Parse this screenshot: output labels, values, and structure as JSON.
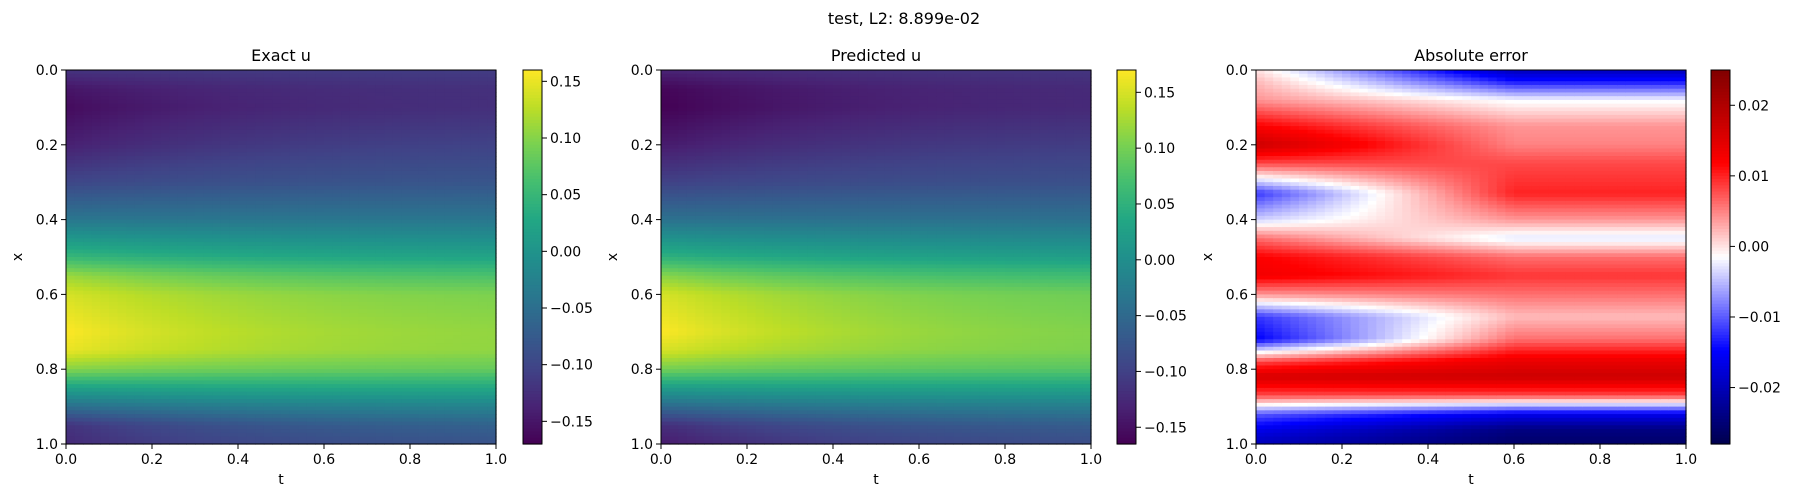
{
  "figure": {
    "suptitle": "test, L2: 8.899e-02"
  },
  "chart_data": [
    {
      "type": "heatmap",
      "title": "Exact u",
      "xlabel": "t",
      "ylabel": "x",
      "xlim": [
        0.0,
        1.0
      ],
      "ylim": [
        1.0,
        0.0
      ],
      "x_ticks": [
        "0.0",
        "0.2",
        "0.4",
        "0.6",
        "0.8",
        "1.0"
      ],
      "y_ticks": [
        "0.0",
        "0.2",
        "0.4",
        "0.6",
        "0.8",
        "1.0"
      ],
      "colormap": "viridis",
      "colorbar": {
        "range": [
          -0.17,
          0.16
        ],
        "ticks": [
          0.15,
          0.1,
          0.05,
          0.0,
          -0.05,
          -0.1,
          -0.15
        ],
        "tick_labels": [
          "0.15",
          "0.10",
          "0.05",
          "0.00",
          "−0.05",
          "−0.10",
          "−0.15"
        ]
      },
      "field_profile_x": [
        0.0,
        0.05,
        0.1,
        0.2,
        0.3,
        0.4,
        0.5,
        0.55,
        0.6,
        0.7,
        0.75,
        0.8,
        0.85,
        0.9,
        0.95,
        1.0
      ],
      "field_profile_u_t0": [
        -0.12,
        -0.15,
        -0.16,
        -0.14,
        -0.1,
        -0.04,
        0.05,
        0.11,
        0.14,
        0.16,
        0.15,
        0.1,
        0.02,
        -0.05,
        -0.12,
        -0.13
      ],
      "field_profile_u_t1": [
        -0.11,
        -0.12,
        -0.12,
        -0.1,
        -0.08,
        -0.04,
        0.02,
        0.06,
        0.09,
        0.1,
        0.1,
        0.08,
        0.03,
        -0.02,
        -0.06,
        -0.08
      ]
    },
    {
      "type": "heatmap",
      "title": "Predicted u",
      "xlabel": "t",
      "ylabel": "x",
      "xlim": [
        0.0,
        1.0
      ],
      "ylim": [
        1.0,
        0.0
      ],
      "x_ticks": [
        "0.0",
        "0.2",
        "0.4",
        "0.6",
        "0.8",
        "1.0"
      ],
      "y_ticks": [
        "0.0",
        "0.2",
        "0.4",
        "0.6",
        "0.8",
        "1.0"
      ],
      "colormap": "viridis",
      "colorbar": {
        "range": [
          -0.165,
          0.17
        ],
        "ticks": [
          0.15,
          0.1,
          0.05,
          0.0,
          -0.05,
          -0.1,
          -0.15
        ],
        "tick_labels": [
          "0.15",
          "0.10",
          "0.05",
          "0.00",
          "−0.05",
          "−0.10",
          "−0.15"
        ]
      },
      "field_profile_x": [
        0.0,
        0.05,
        0.1,
        0.2,
        0.3,
        0.4,
        0.5,
        0.55,
        0.6,
        0.7,
        0.75,
        0.8,
        0.85,
        0.9,
        0.95,
        1.0
      ],
      "field_profile_u_t0": [
        -0.13,
        -0.16,
        -0.165,
        -0.14,
        -0.1,
        -0.04,
        0.05,
        0.11,
        0.15,
        0.17,
        0.15,
        0.1,
        0.02,
        -0.05,
        -0.12,
        -0.14
      ],
      "field_profile_u_t1": [
        -0.11,
        -0.12,
        -0.12,
        -0.1,
        -0.08,
        -0.04,
        0.02,
        0.06,
        0.09,
        0.1,
        0.1,
        0.08,
        0.03,
        -0.02,
        -0.06,
        -0.08
      ]
    },
    {
      "type": "heatmap",
      "title": "Absolute error",
      "xlabel": "t",
      "ylabel": "x",
      "xlim": [
        0.0,
        1.0
      ],
      "ylim": [
        1.0,
        0.0
      ],
      "x_ticks": [
        "0.0",
        "0.2",
        "0.4",
        "0.6",
        "0.8",
        "1.0"
      ],
      "y_ticks": [
        "0.0",
        "0.2",
        "0.4",
        "0.6",
        "0.8",
        "1.0"
      ],
      "colormap": "seismic",
      "colorbar": {
        "range": [
          -0.028,
          0.025
        ],
        "ticks": [
          0.02,
          0.01,
          0.0,
          -0.01,
          -0.02
        ],
        "tick_labels": [
          "0.02",
          "0.01",
          "0.00",
          "−0.01",
          "−0.02"
        ]
      },
      "field_profile_x": [
        0.0,
        0.03,
        0.08,
        0.15,
        0.2,
        0.25,
        0.33,
        0.4,
        0.45,
        0.5,
        0.55,
        0.6,
        0.66,
        0.72,
        0.78,
        0.82,
        0.87,
        0.92,
        0.96,
        1.0
      ],
      "field_profile_err_t0": [
        0.0,
        0.002,
        0.004,
        0.012,
        0.017,
        0.008,
        -0.012,
        -0.004,
        0.006,
        0.012,
        0.013,
        0.004,
        -0.012,
        -0.015,
        0.008,
        0.016,
        0.008,
        -0.01,
        -0.016,
        -0.02
      ],
      "field_profile_err_t1": [
        -0.02,
        -0.014,
        -0.002,
        0.004,
        0.005,
        0.008,
        0.01,
        0.004,
        -0.003,
        0.006,
        0.009,
        0.006,
        0.002,
        0.006,
        0.014,
        0.017,
        0.008,
        -0.016,
        -0.024,
        -0.026
      ]
    }
  ]
}
